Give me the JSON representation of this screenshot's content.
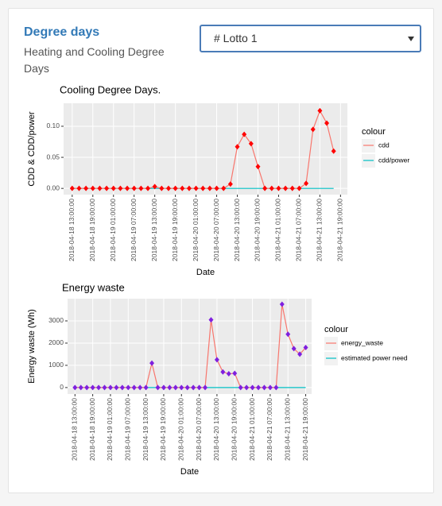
{
  "header": {
    "title": "Degree days",
    "subtitle": "Heating and Cooling Degree Days"
  },
  "dropdown": {
    "selected": "# Lotto 1"
  },
  "chart_data": [
    {
      "type": "line",
      "title": "Cooling Degree Days.",
      "xlabel": "Date",
      "ylabel": "CDD & CDD/power",
      "legend_title": "colour",
      "grid": true,
      "x": [
        "2018-04-18 13:00:00",
        "2018-04-18 15:00:00",
        "2018-04-18 17:00:00",
        "2018-04-18 19:00:00",
        "2018-04-18 21:00:00",
        "2018-04-18 23:00:00",
        "2018-04-19 01:00:00",
        "2018-04-19 03:00:00",
        "2018-04-19 05:00:00",
        "2018-04-19 07:00:00",
        "2018-04-19 09:00:00",
        "2018-04-19 11:00:00",
        "2018-04-19 13:00:00",
        "2018-04-19 15:00:00",
        "2018-04-19 17:00:00",
        "2018-04-19 19:00:00",
        "2018-04-19 21:00:00",
        "2018-04-19 23:00:00",
        "2018-04-20 01:00:00",
        "2018-04-20 03:00:00",
        "2018-04-20 05:00:00",
        "2018-04-20 07:00:00",
        "2018-04-20 09:00:00",
        "2018-04-20 11:00:00",
        "2018-04-20 13:00:00",
        "2018-04-20 15:00:00",
        "2018-04-20 17:00:00",
        "2018-04-20 19:00:00",
        "2018-04-20 21:00:00",
        "2018-04-20 23:00:00",
        "2018-04-21 01:00:00",
        "2018-04-21 03:00:00",
        "2018-04-21 05:00:00",
        "2018-04-21 07:00:00",
        "2018-04-21 09:00:00",
        "2018-04-21 11:00:00",
        "2018-04-21 13:00:00",
        "2018-04-21 15:00:00",
        "2018-04-21 17:00:00"
      ],
      "series": [
        {
          "name": "cdd",
          "color": "#F8766D",
          "marker_color": "#ff0000",
          "values": [
            0,
            0,
            0,
            0,
            0,
            0,
            0,
            0,
            0,
            0,
            0,
            0,
            0.003,
            0,
            0,
            0,
            0,
            0,
            0,
            0,
            0,
            0,
            0,
            0.007,
            0.067,
            0.087,
            0.072,
            0.035,
            0,
            0,
            0,
            0,
            0,
            0,
            0.008,
            0.095,
            0.125,
            0.105,
            0.06
          ]
        },
        {
          "name": "cdd/power",
          "color": "#00BFC4",
          "values": [
            0,
            0,
            0,
            0,
            0,
            0,
            0,
            0,
            0,
            0,
            0,
            0,
            0,
            0,
            0,
            0,
            0,
            0,
            0,
            0,
            0,
            0,
            0,
            0,
            0,
            0,
            0,
            0,
            0,
            0,
            0,
            0,
            0,
            0,
            0,
            0,
            0,
            0,
            0
          ]
        }
      ],
      "xlim": [
        "2018-04-18 10:30:00",
        "2018-04-21 21:00:00"
      ],
      "xticks": [
        "2018-04-18 13:00:00",
        "2018-04-18 19:00:00",
        "2018-04-19 01:00:00",
        "2018-04-19 07:00:00",
        "2018-04-19 13:00:00",
        "2018-04-19 19:00:00",
        "2018-04-20 01:00:00",
        "2018-04-20 07:00:00",
        "2018-04-20 13:00:00",
        "2018-04-20 19:00:00",
        "2018-04-21 01:00:00",
        "2018-04-21 07:00:00",
        "2018-04-21 13:00:00",
        "2018-04-21 19:00:00"
      ],
      "ylim": [
        -0.01,
        0.137
      ],
      "yticks": [
        {
          "value": 0,
          "label": "0.00"
        },
        {
          "value": 0.05,
          "label": "0.05"
        },
        {
          "value": 0.1,
          "label": "0.10"
        }
      ]
    },
    {
      "type": "line",
      "title": "Energy waste",
      "xlabel": "Date",
      "ylabel": "Energy waste (Wh)",
      "legend_title": "colour",
      "grid": true,
      "x": [
        "2018-04-18 13:00:00",
        "2018-04-18 15:00:00",
        "2018-04-18 17:00:00",
        "2018-04-18 19:00:00",
        "2018-04-18 21:00:00",
        "2018-04-18 23:00:00",
        "2018-04-19 01:00:00",
        "2018-04-19 03:00:00",
        "2018-04-19 05:00:00",
        "2018-04-19 07:00:00",
        "2018-04-19 09:00:00",
        "2018-04-19 11:00:00",
        "2018-04-19 13:00:00",
        "2018-04-19 15:00:00",
        "2018-04-19 17:00:00",
        "2018-04-19 19:00:00",
        "2018-04-19 21:00:00",
        "2018-04-19 23:00:00",
        "2018-04-20 01:00:00",
        "2018-04-20 03:00:00",
        "2018-04-20 05:00:00",
        "2018-04-20 07:00:00",
        "2018-04-20 09:00:00",
        "2018-04-20 11:00:00",
        "2018-04-20 13:00:00",
        "2018-04-20 15:00:00",
        "2018-04-20 17:00:00",
        "2018-04-20 19:00:00",
        "2018-04-20 21:00:00",
        "2018-04-20 23:00:00",
        "2018-04-21 01:00:00",
        "2018-04-21 03:00:00",
        "2018-04-21 05:00:00",
        "2018-04-21 07:00:00",
        "2018-04-21 09:00:00",
        "2018-04-21 11:00:00",
        "2018-04-21 13:00:00",
        "2018-04-21 15:00:00",
        "2018-04-21 17:00:00",
        "2018-04-21 19:00:00"
      ],
      "series": [
        {
          "name": "energy_waste",
          "color": "#F8766D",
          "marker_color": "#7f1fdf",
          "values": [
            0,
            0,
            0,
            0,
            0,
            0,
            0,
            0,
            0,
            0,
            0,
            0,
            0,
            1100,
            0,
            0,
            0,
            0,
            0,
            0,
            0,
            0,
            0,
            3050,
            1250,
            700,
            620,
            640,
            0,
            0,
            0,
            0,
            0,
            0,
            0,
            3750,
            2400,
            1750,
            1500,
            1800
          ]
        },
        {
          "name": "estimated power need",
          "color": "#00BFC4",
          "values": [
            0,
            0,
            0,
            0,
            0,
            0,
            0,
            0,
            0,
            0,
            0,
            0,
            0,
            0,
            0,
            0,
            0,
            0,
            0,
            0,
            0,
            0,
            0,
            0,
            0,
            0,
            0,
            0,
            0,
            0,
            0,
            0,
            0,
            0,
            0,
            0,
            0,
            0,
            0,
            0
          ]
        }
      ],
      "xlim": [
        "2018-04-18 10:30:00",
        "2018-04-21 21:00:00"
      ],
      "xticks": [
        "2018-04-18 13:00:00",
        "2018-04-18 19:00:00",
        "2018-04-19 01:00:00",
        "2018-04-19 07:00:00",
        "2018-04-19 13:00:00",
        "2018-04-19 19:00:00",
        "2018-04-20 01:00:00",
        "2018-04-20 07:00:00",
        "2018-04-20 13:00:00",
        "2018-04-20 19:00:00",
        "2018-04-21 01:00:00",
        "2018-04-21 07:00:00",
        "2018-04-21 13:00:00",
        "2018-04-21 19:00:00"
      ],
      "ylim": [
        -290,
        4000
      ],
      "yticks": [
        0,
        1000,
        2000,
        3000
      ]
    }
  ]
}
